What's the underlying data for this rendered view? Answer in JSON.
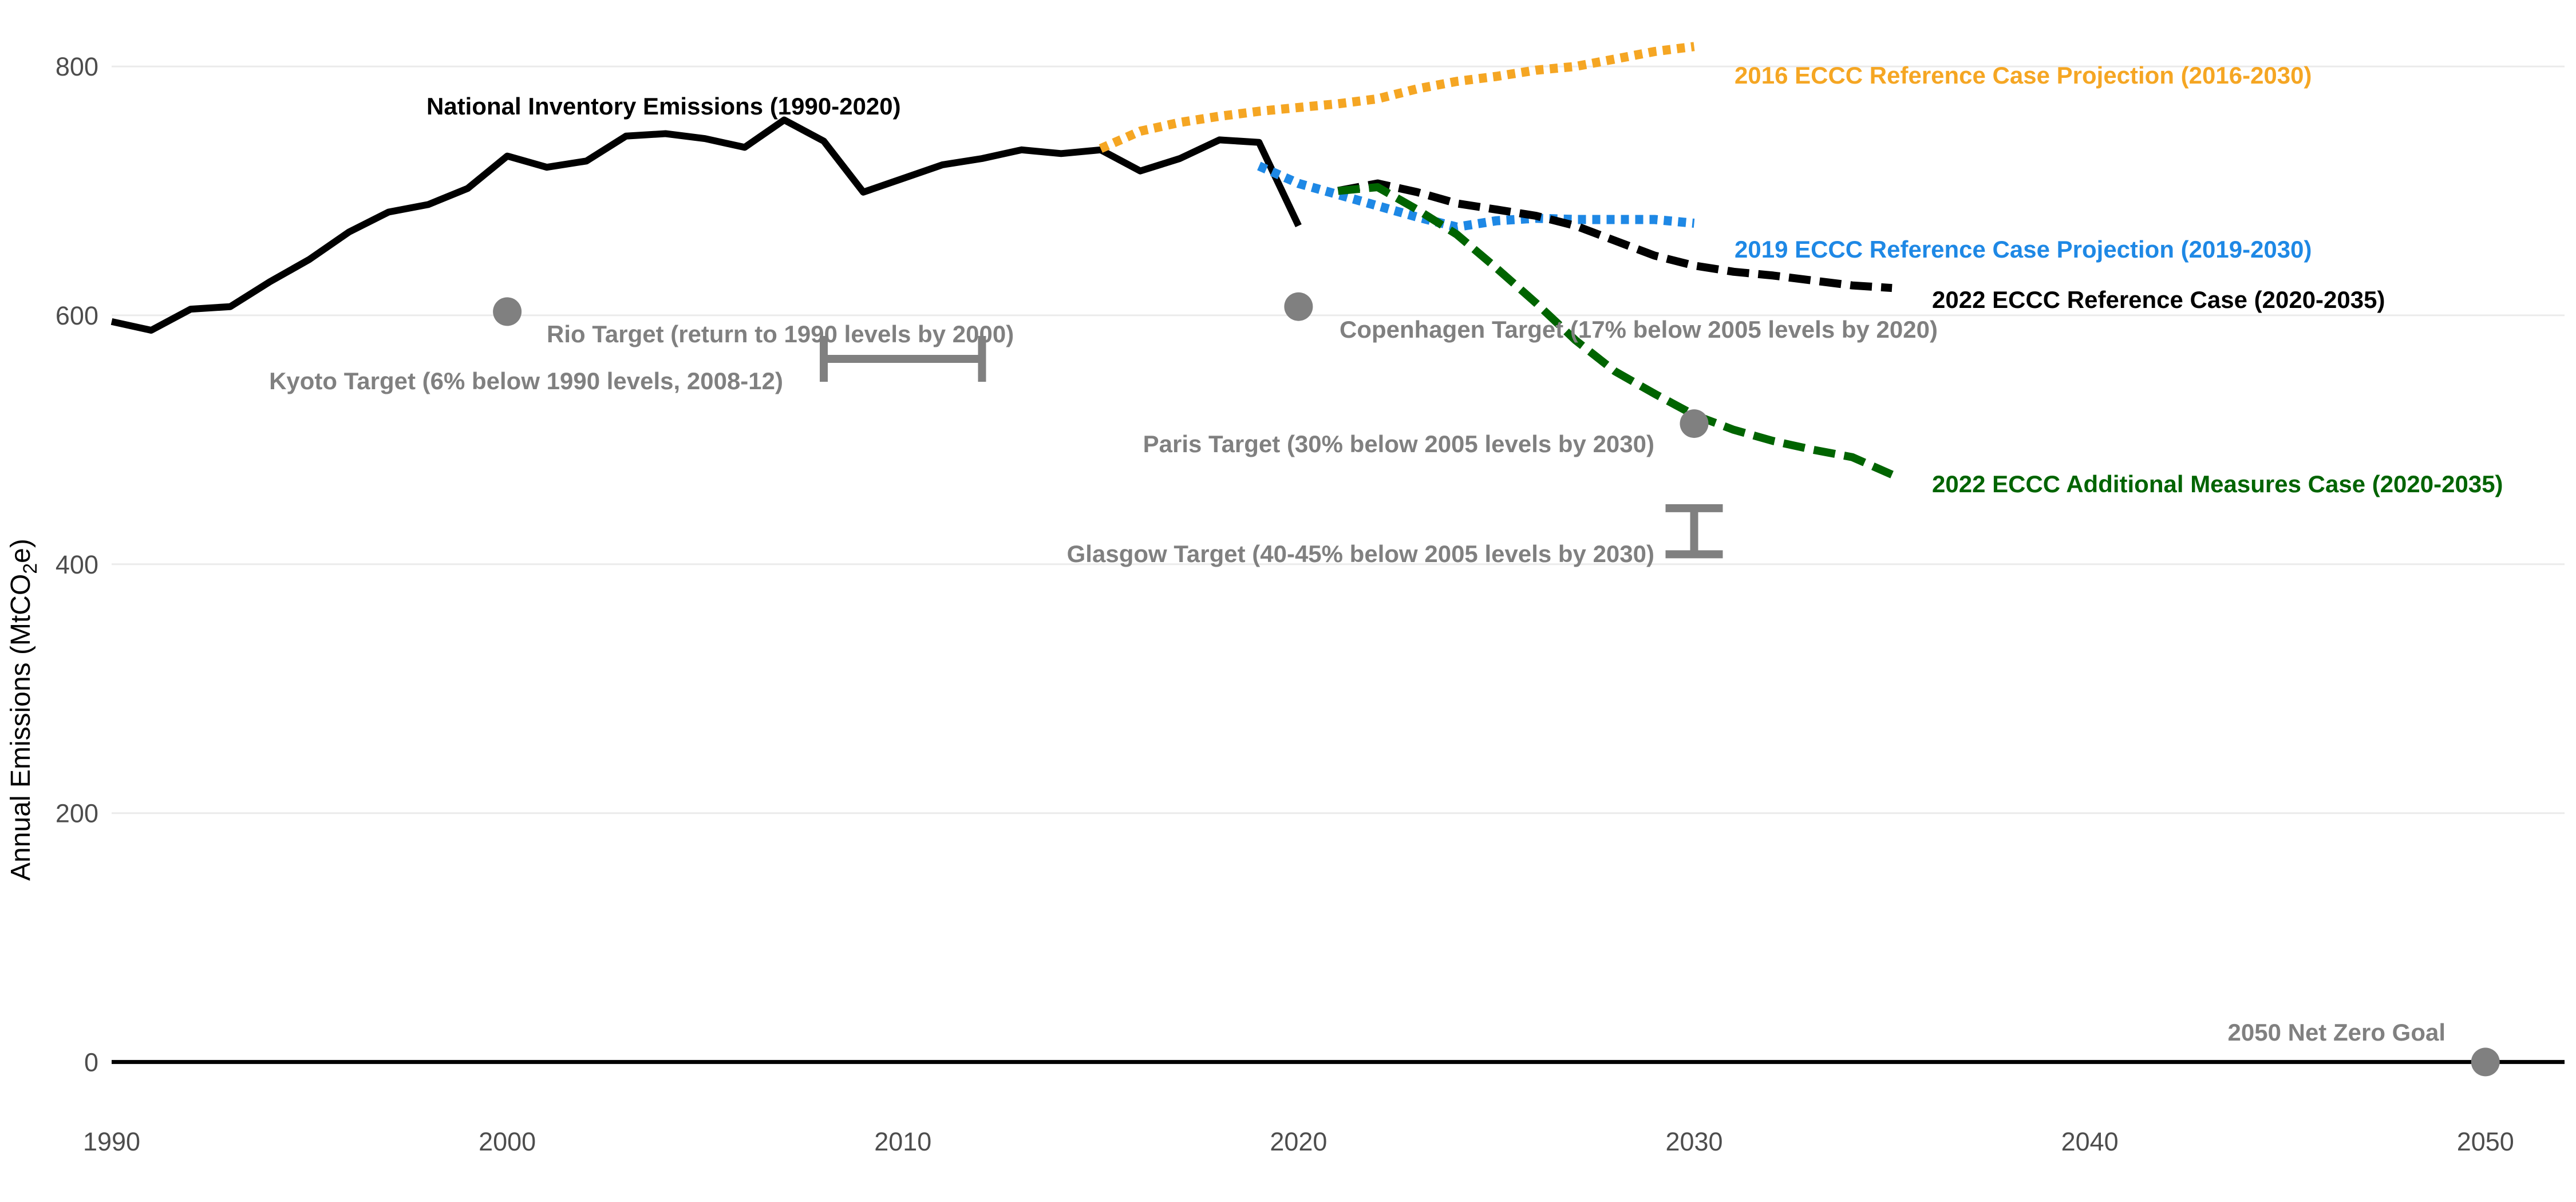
{
  "chart_data": {
    "type": "line",
    "ylabel": "Annual Emissions (MtCO",
    "ylabel_sub": "2",
    "ylabel_end": "e)",
    "xlim": [
      1990,
      2052
    ],
    "ylim": [
      -55,
      835
    ],
    "x_ticks": [
      1990,
      2000,
      2010,
      2020,
      2030,
      2040,
      2050
    ],
    "y_ticks": [
      0,
      200,
      400,
      600,
      800
    ],
    "grid": "horizontal",
    "colors": {
      "inventory": "#000000",
      "eccc2016": "#f5a623",
      "eccc2019": "#1e88e5",
      "reference2022": "#000000",
      "additional2022": "#006400",
      "targets": "#808080"
    },
    "series": [
      {
        "key": "inventory",
        "name": "National Inventory Emissions (1990-2020)",
        "style": "solid",
        "x": [
          1990,
          1991,
          1992,
          1993,
          1994,
          1995,
          1996,
          1997,
          1998,
          1999,
          2000,
          2001,
          2002,
          2003,
          2004,
          2005,
          2006,
          2007,
          2008,
          2009,
          2010,
          2011,
          2012,
          2013,
          2014,
          2015,
          2016,
          2017,
          2018,
          2019,
          2020
        ],
        "y": [
          595,
          588,
          605,
          607,
          627,
          645,
          667,
          683,
          689,
          702,
          728,
          719,
          724,
          744,
          746,
          742,
          735,
          757,
          740,
          699,
          710,
          721,
          726,
          733,
          730,
          733,
          716,
          726,
          741,
          739,
          672
        ]
      },
      {
        "key": "eccc2016",
        "name": "2016 ECCC Reference Case Projection (2016-2030)",
        "style": "dotted",
        "x": [
          2015,
          2016,
          2017,
          2018,
          2019,
          2020,
          2021,
          2022,
          2023,
          2024,
          2025,
          2026,
          2027,
          2028,
          2029,
          2030
        ],
        "y": [
          734,
          748,
          755,
          760,
          764,
          767,
          770,
          774,
          782,
          788,
          792,
          797,
          800,
          806,
          812,
          816
        ]
      },
      {
        "key": "eccc2019",
        "name": "2019 ECCC Reference Case Projection (2019-2030)",
        "style": "dotted",
        "x": [
          2019,
          2020,
          2021,
          2022,
          2023,
          2024,
          2025,
          2026,
          2027,
          2028,
          2029,
          2030
        ],
        "y": [
          720,
          706,
          697,
          688,
          679,
          671,
          676,
          678,
          677,
          677,
          677,
          674
        ]
      },
      {
        "key": "reference2022",
        "name": "2022 ECCC Reference Case (2020-2035)",
        "style": "dashed",
        "x": [
          2021,
          2022,
          2023,
          2024,
          2025,
          2026,
          2027,
          2028,
          2029,
          2030,
          2031,
          2032,
          2033,
          2034,
          2035
        ],
        "y": [
          700,
          706,
          699,
          690,
          685,
          680,
          672,
          660,
          648,
          640,
          635,
          632,
          628,
          624,
          622
        ]
      },
      {
        "key": "additional2022",
        "name": "2022 ECCC Additional Measures Case (2020-2035)",
        "style": "dashed",
        "x": [
          2021,
          2022,
          2023,
          2024,
          2025,
          2026,
          2027,
          2028,
          2029,
          2030,
          2031,
          2032,
          2033,
          2034,
          2035
        ],
        "y": [
          700,
          703,
          685,
          665,
          638,
          610,
          580,
          555,
          537,
          520,
          508,
          499,
          492,
          486,
          472
        ]
      }
    ],
    "targets": [
      {
        "name": "Rio Target (return to 1990 levels by 2000)",
        "type": "point",
        "x": 2000,
        "y": 603
      },
      {
        "name": "Kyoto Target (6% below 1990 levels, 2008-12)",
        "type": "hrange",
        "x0": 2008,
        "x1": 2012,
        "y": 565
      },
      {
        "name": "Copenhagen Target (17% below 2005 levels by 2020)",
        "type": "point",
        "x": 2020,
        "y": 607
      },
      {
        "name": "Paris Target (30% below 2005 levels by 2030)",
        "type": "point",
        "x": 2030,
        "y": 513
      },
      {
        "name": "Glasgow Target (40-45% below 2005 levels by 2030)",
        "type": "vrange",
        "x": 2030,
        "y0": 408,
        "y1": 445
      },
      {
        "name": "2050 Net Zero Goal",
        "type": "point",
        "x": 2050,
        "y": 0
      }
    ]
  }
}
